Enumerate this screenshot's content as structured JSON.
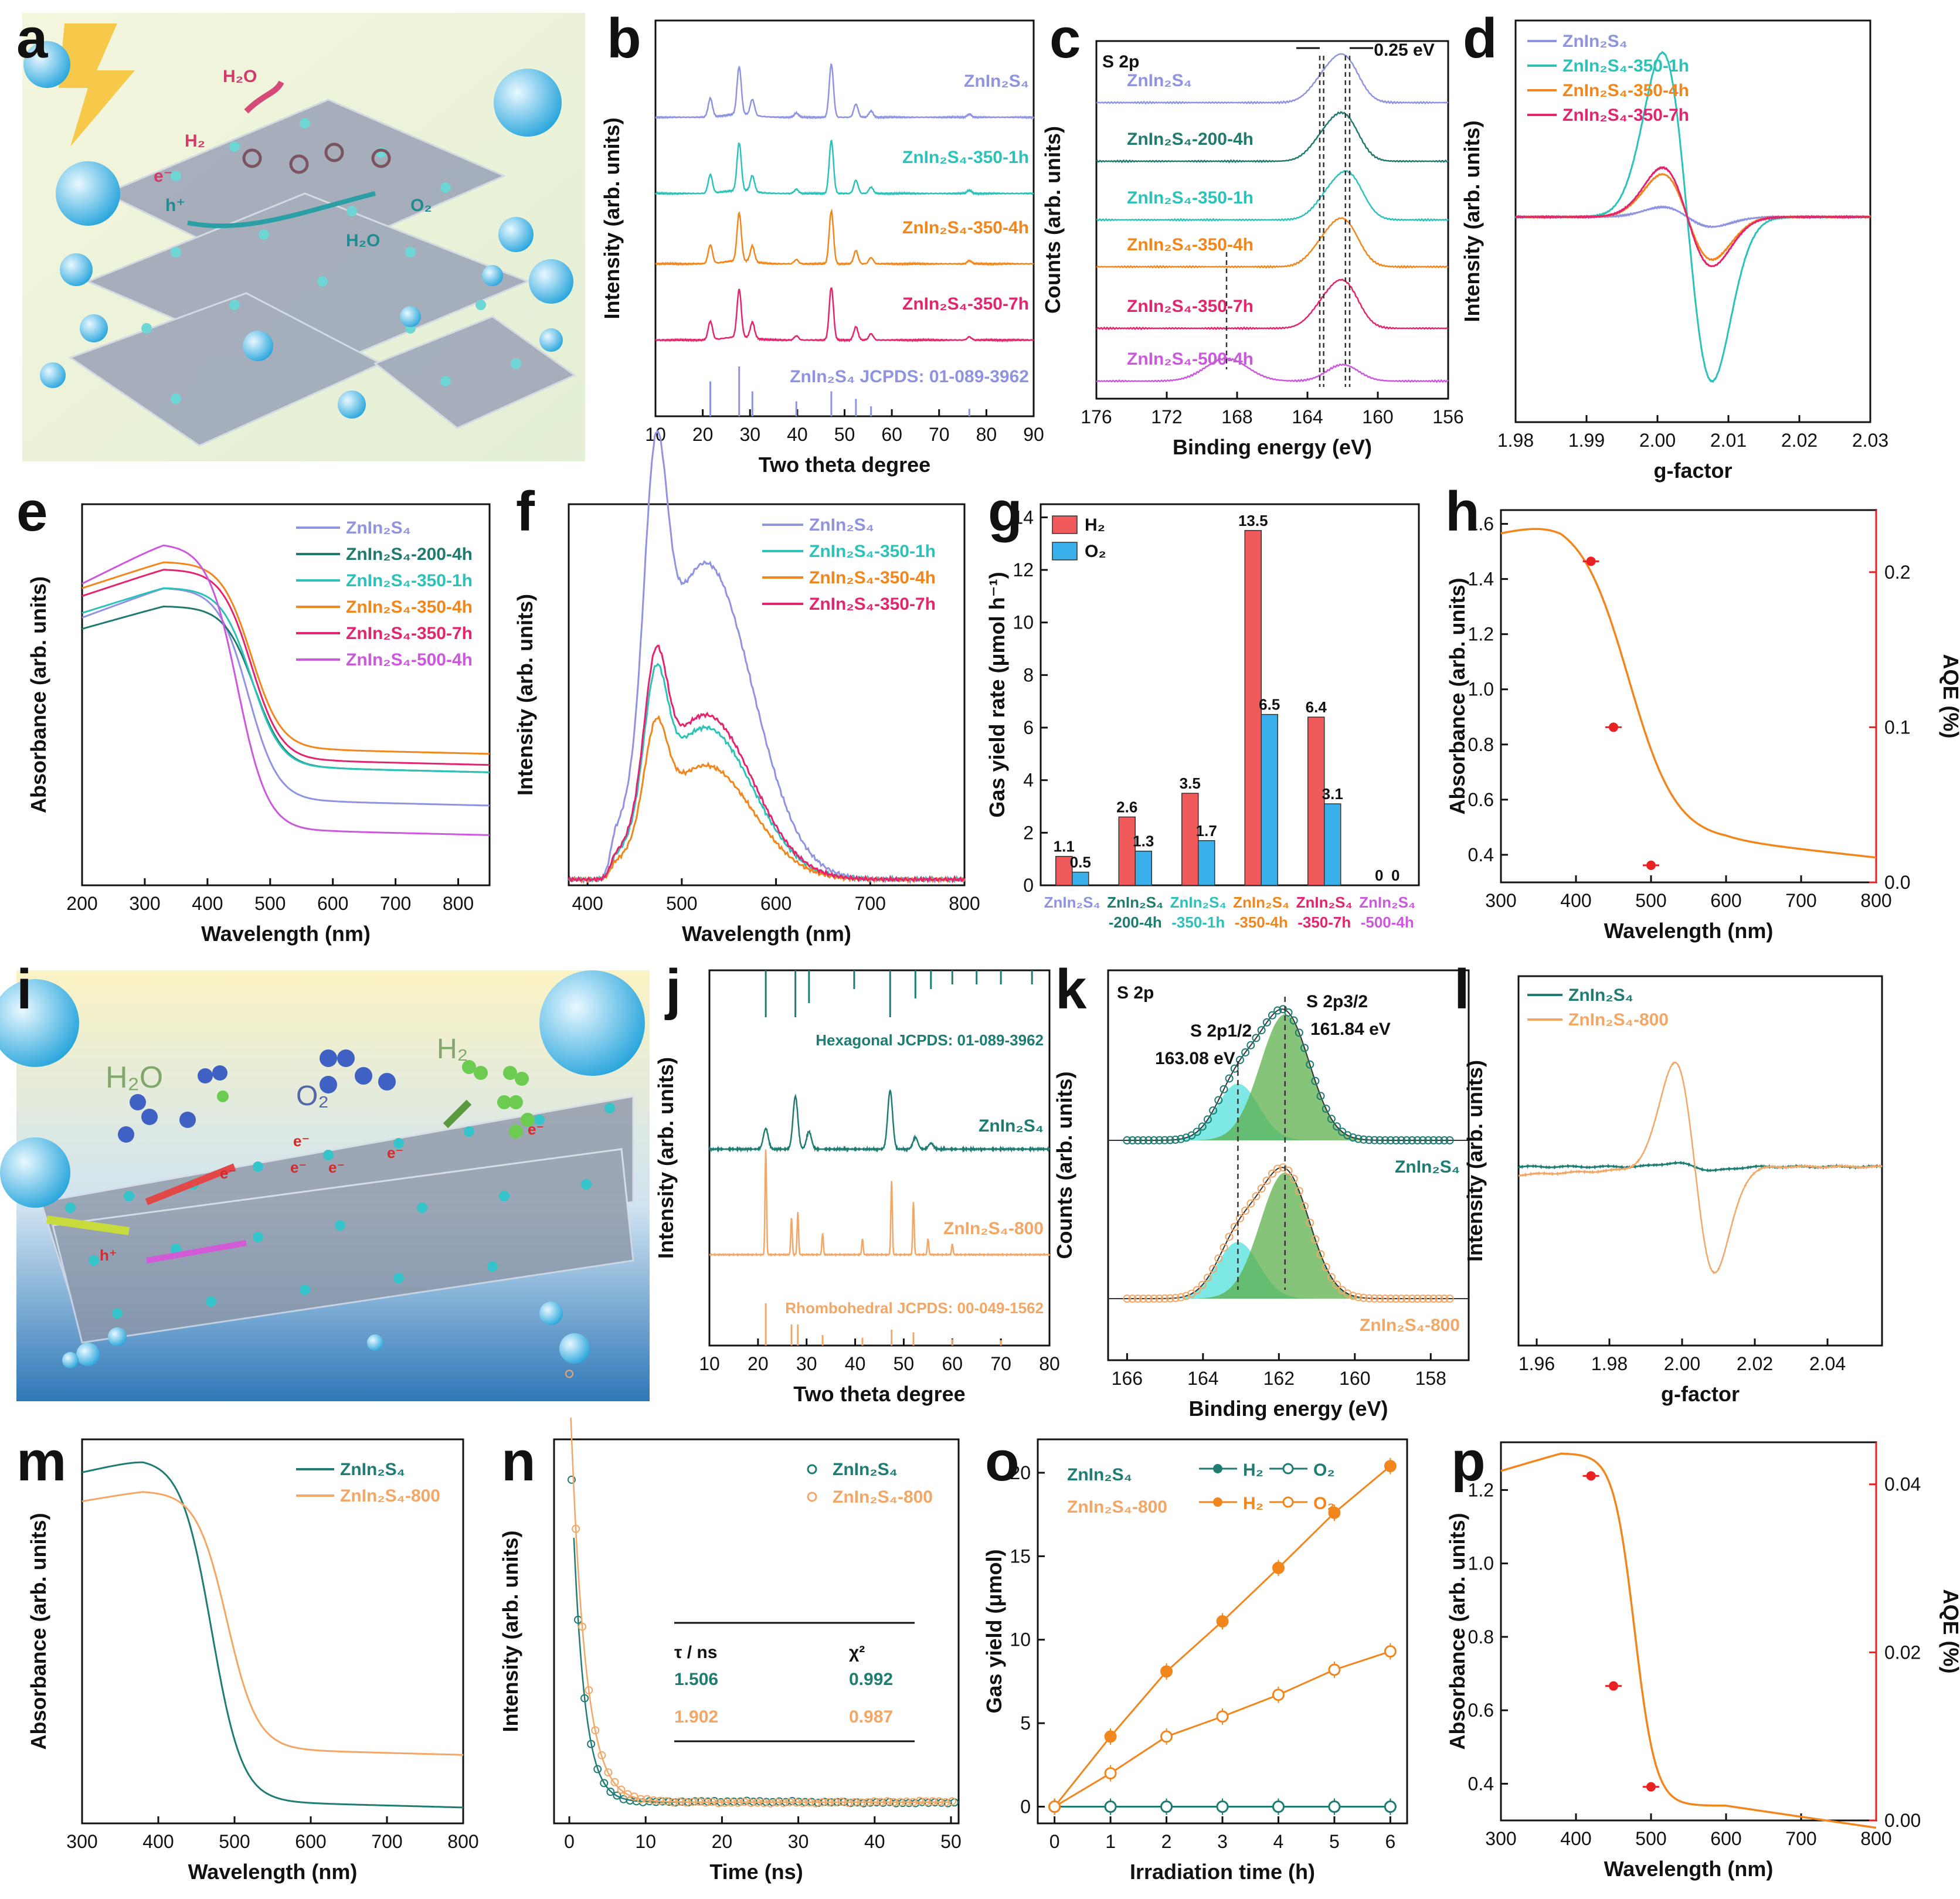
{
  "figure": {
    "panel_letters": [
      "a",
      "b",
      "c",
      "d",
      "e",
      "f",
      "g",
      "h",
      "i",
      "j",
      "k",
      "l",
      "m",
      "n",
      "o",
      "p"
    ],
    "colors": {
      "zis": "#8f93e0",
      "z200": "#217a6e",
      "z350_1": "#2cc2ba",
      "z350_4": "#f1861d",
      "z350_7": "#e3246e",
      "z500": "#cc58dd",
      "teal": "#1e7c72",
      "orange": "#f3a766",
      "red": "#f05a5a",
      "blue": "#3ab0ea",
      "aqe": "#e82222"
    }
  },
  "illustrations": {
    "a": {
      "labels": [
        "H₂",
        "H₂O",
        "e⁻",
        "h⁺",
        "O₂",
        "H₂O"
      ]
    },
    "i": {
      "labels": [
        "H₂O",
        "O₂",
        "H₂",
        "e⁻",
        "e⁻",
        "e⁻",
        "e⁻",
        "e⁻",
        "e⁻",
        "h⁺"
      ]
    }
  },
  "chart_data": [
    {
      "panel": "b",
      "type": "line",
      "xlabel": "Two theta degree",
      "ylabel": "Intensity (arb. units)",
      "xlim": [
        10,
        90
      ],
      "xticks": [
        10,
        20,
        30,
        40,
        50,
        60,
        70,
        80,
        90
      ],
      "series_labels": [
        "ZnIn₂S₄",
        "ZnIn₂S₄-350-1h",
        "ZnIn₂S₄-350-4h",
        "ZnIn₂S₄-350-7h"
      ],
      "reference": "ZnIn₂S₄  JCPDS: 01-089-3962",
      "peaks": [
        21.6,
        27.7,
        30.5,
        39.8,
        47.2,
        52.4,
        55.6,
        76.4
      ]
    },
    {
      "panel": "c",
      "type": "line",
      "title": "S 2p",
      "xlabel": "Binding energy (eV)",
      "ylabel": "Counts (arb. units)",
      "xlim": [
        176,
        156
      ],
      "xticks": [
        176,
        172,
        168,
        164,
        160,
        156
      ],
      "annotation": "0.25 eV",
      "series_labels": [
        "ZnIn₂S₄",
        "ZnIn₂S₄-200-4h",
        "ZnIn₂S₄-350-1h",
        "ZnIn₂S₄-350-4h",
        "ZnIn₂S₄-350-7h",
        "ZnIn₂S₄-500-4h"
      ]
    },
    {
      "panel": "d",
      "type": "line",
      "xlabel": "g-factor",
      "ylabel": "Intensity (arb. units)",
      "xlim": [
        1.98,
        2.03
      ],
      "xticks": [
        "1.98",
        "1.99",
        "2.00",
        "2.01",
        "2.02",
        "2.03"
      ],
      "series_labels": [
        "ZnIn₂S₄",
        "ZnIn₂S₄-350-1h",
        "ZnIn₂S₄-350-4h",
        "ZnIn₂S₄-350-7h"
      ],
      "amplitudes": [
        0.06,
        1.0,
        0.26,
        0.3
      ]
    },
    {
      "panel": "e",
      "type": "line",
      "xlabel": "Wavelength (nm)",
      "ylabel": "Absorbance (arb. units)",
      "xlim": [
        200,
        850
      ],
      "xticks": [
        200,
        300,
        400,
        500,
        600,
        700,
        800
      ],
      "series_labels": [
        "ZnIn₂S₄",
        "ZnIn₂S₄-200-4h",
        "ZnIn₂S₄-350-1h",
        "ZnIn₂S₄-350-4h",
        "ZnIn₂S₄-350-7h",
        "ZnIn₂S₄-500-4h"
      ]
    },
    {
      "panel": "f",
      "type": "line",
      "xlabel": "Wavelength (nm)",
      "ylabel": "Intensity (arb. units)",
      "xlim": [
        380,
        800
      ],
      "xticks": [
        400,
        500,
        600,
        700,
        800
      ],
      "series_labels": [
        "ZnIn₂S₄",
        "ZnIn₂S₄-350-1h",
        "ZnIn₂S₄-350-4h",
        "ZnIn₂S₄-350-7h"
      ]
    },
    {
      "panel": "g",
      "type": "bar",
      "ylabel": "Gas yield rate (μmol h⁻¹)",
      "ylim": [
        0,
        14.5
      ],
      "yticks": [
        0,
        2,
        4,
        6,
        8,
        10,
        12,
        14
      ],
      "categories": [
        [
          "ZnIn₂S₄",
          ""
        ],
        [
          "ZnIn₂S₄",
          "-200-4h"
        ],
        [
          "ZnIn₂S₄",
          "-350-1h"
        ],
        [
          "ZnIn₂S₄",
          "-350-4h"
        ],
        [
          "ZnIn₂S₄",
          "-350-7h"
        ],
        [
          "ZnIn₂S₄",
          "-500-4h"
        ]
      ],
      "series": [
        {
          "name": "H₂",
          "values": [
            1.1,
            2.6,
            3.5,
            13.5,
            6.4,
            0
          ]
        },
        {
          "name": "O₂",
          "values": [
            0.5,
            1.3,
            1.7,
            6.5,
            3.1,
            0
          ]
        }
      ]
    },
    {
      "panel": "h",
      "type": "line",
      "xlabel": "Wavelength (nm)",
      "ylabel": "Absorbance (arb. units)",
      "ylabel2": "AQE (%)",
      "xlim": [
        300,
        800
      ],
      "ylim": [
        0.3,
        1.65
      ],
      "y2lim": [
        0,
        0.24
      ],
      "xticks": [
        300,
        400,
        500,
        600,
        700,
        800
      ],
      "yticks": [
        "0.4",
        "0.6",
        "0.8",
        "1.0",
        "1.2",
        "1.4",
        "1.6"
      ],
      "y2ticks": [
        "0.0",
        "0.1",
        "0.2"
      ],
      "aqe_points": [
        {
          "x": 420,
          "y": 0.207
        },
        {
          "x": 450,
          "y": 0.1
        },
        {
          "x": 500,
          "y": 0.011
        }
      ]
    },
    {
      "panel": "j",
      "type": "line",
      "xlabel": "Two theta degree",
      "ylabel": "Intensity (arb. units)",
      "xlim": [
        10,
        80
      ],
      "xticks": [
        10,
        20,
        30,
        40,
        50,
        60,
        70,
        80
      ],
      "series_labels": [
        "ZnIn₂S₄",
        "ZnIn₂S₄-800"
      ],
      "references": [
        "Hexagonal  JCPDS: 01-089-3962",
        "Rhombohedral  JCPDS: 00-049-1562"
      ]
    },
    {
      "panel": "k",
      "type": "line",
      "title": "S 2p",
      "xlabel": "Binding energy (eV)",
      "ylabel": "Counts (arb. units)",
      "xlim": [
        166.5,
        157
      ],
      "xticks": [
        166,
        164,
        162,
        160,
        158
      ],
      "peaks": [
        {
          "name": "S 2p1/2",
          "value": "163.08 eV"
        },
        {
          "name": "S 2p3/2",
          "value": "161.84 eV"
        }
      ],
      "series_labels": [
        "ZnIn₂S₄",
        "ZnIn₂S₄-800"
      ]
    },
    {
      "panel": "l",
      "type": "line",
      "xlabel": "g-factor",
      "ylabel": "Intensity (arb. units)",
      "xlim": [
        1.955,
        2.055
      ],
      "xticks": [
        "1.96",
        "1.98",
        "2.00",
        "2.02",
        "2.04"
      ],
      "series_labels": [
        "ZnIn₂S₄",
        "ZnIn₂S₄-800"
      ]
    },
    {
      "panel": "m",
      "type": "line",
      "xlabel": "Wavelength (nm)",
      "ylabel": "Absorbance (arb. units)",
      "xlim": [
        300,
        800
      ],
      "xticks": [
        300,
        400,
        500,
        600,
        700,
        800
      ],
      "series_labels": [
        "ZnIn₂S₄",
        "ZnIn₂S₄-800"
      ]
    },
    {
      "panel": "n",
      "type": "scatter",
      "xlabel": "Time (ns)",
      "ylabel": "Intensity (arb. units)",
      "xlim": [
        -2,
        51
      ],
      "xticks": [
        0,
        10,
        20,
        30,
        40,
        50
      ],
      "series_labels": [
        "ZnIn₂S₄",
        "ZnIn₂S₄-800"
      ],
      "table": {
        "headers": [
          "τ / ns",
          "χ²"
        ],
        "rows": [
          [
            "1.506",
            "0.992"
          ],
          [
            "1.902",
            "0.987"
          ]
        ]
      }
    },
    {
      "panel": "o",
      "type": "line",
      "xlabel": "Irradiation time (h)",
      "ylabel": "Gas yield (μmol)",
      "xlim": [
        -0.3,
        6.3
      ],
      "ylim": [
        -1,
        22
      ],
      "xticks": [
        0,
        1,
        2,
        3,
        4,
        5,
        6
      ],
      "yticks": [
        0,
        5,
        10,
        15,
        20
      ],
      "x": [
        0,
        1,
        2,
        3,
        4,
        5,
        6
      ],
      "series": [
        {
          "name": "ZnIn₂S₄ H₂",
          "values": [
            0,
            0,
            0,
            0,
            0,
            0,
            0
          ]
        },
        {
          "name": "ZnIn₂S₄ O₂",
          "values": [
            0,
            0,
            0,
            0,
            0,
            0,
            0
          ]
        },
        {
          "name": "ZnIn₂S₄-800 H₂",
          "values": [
            0,
            4.2,
            8.1,
            11.1,
            14.3,
            17.6,
            20.4
          ]
        },
        {
          "name": "ZnIn₂S₄-800 O₂",
          "values": [
            0,
            2.0,
            4.2,
            5.4,
            6.7,
            8.2,
            9.3
          ]
        }
      ],
      "legend": {
        "s1": "ZnIn₂S₄",
        "s2": "ZnIn₂S₄-800",
        "h2": "H₂",
        "o2": "O₂"
      }
    },
    {
      "panel": "p",
      "type": "line",
      "xlabel": "Wavelength (nm)",
      "ylabel": "Absorbance (arb. units)",
      "ylabel2": "AQE (%)",
      "xlim": [
        300,
        800
      ],
      "ylim": [
        0.3,
        1.33
      ],
      "y2lim": [
        0,
        0.045
      ],
      "xticks": [
        300,
        400,
        500,
        600,
        700,
        800
      ],
      "yticks": [
        "0.4",
        "0.6",
        "0.8",
        "1.0",
        "1.2"
      ],
      "y2ticks": [
        "0.00",
        "0.02",
        "0.04"
      ],
      "aqe_points": [
        {
          "x": 420,
          "y": 0.041
        },
        {
          "x": 450,
          "y": 0.016
        },
        {
          "x": 500,
          "y": 0.004
        }
      ]
    }
  ]
}
